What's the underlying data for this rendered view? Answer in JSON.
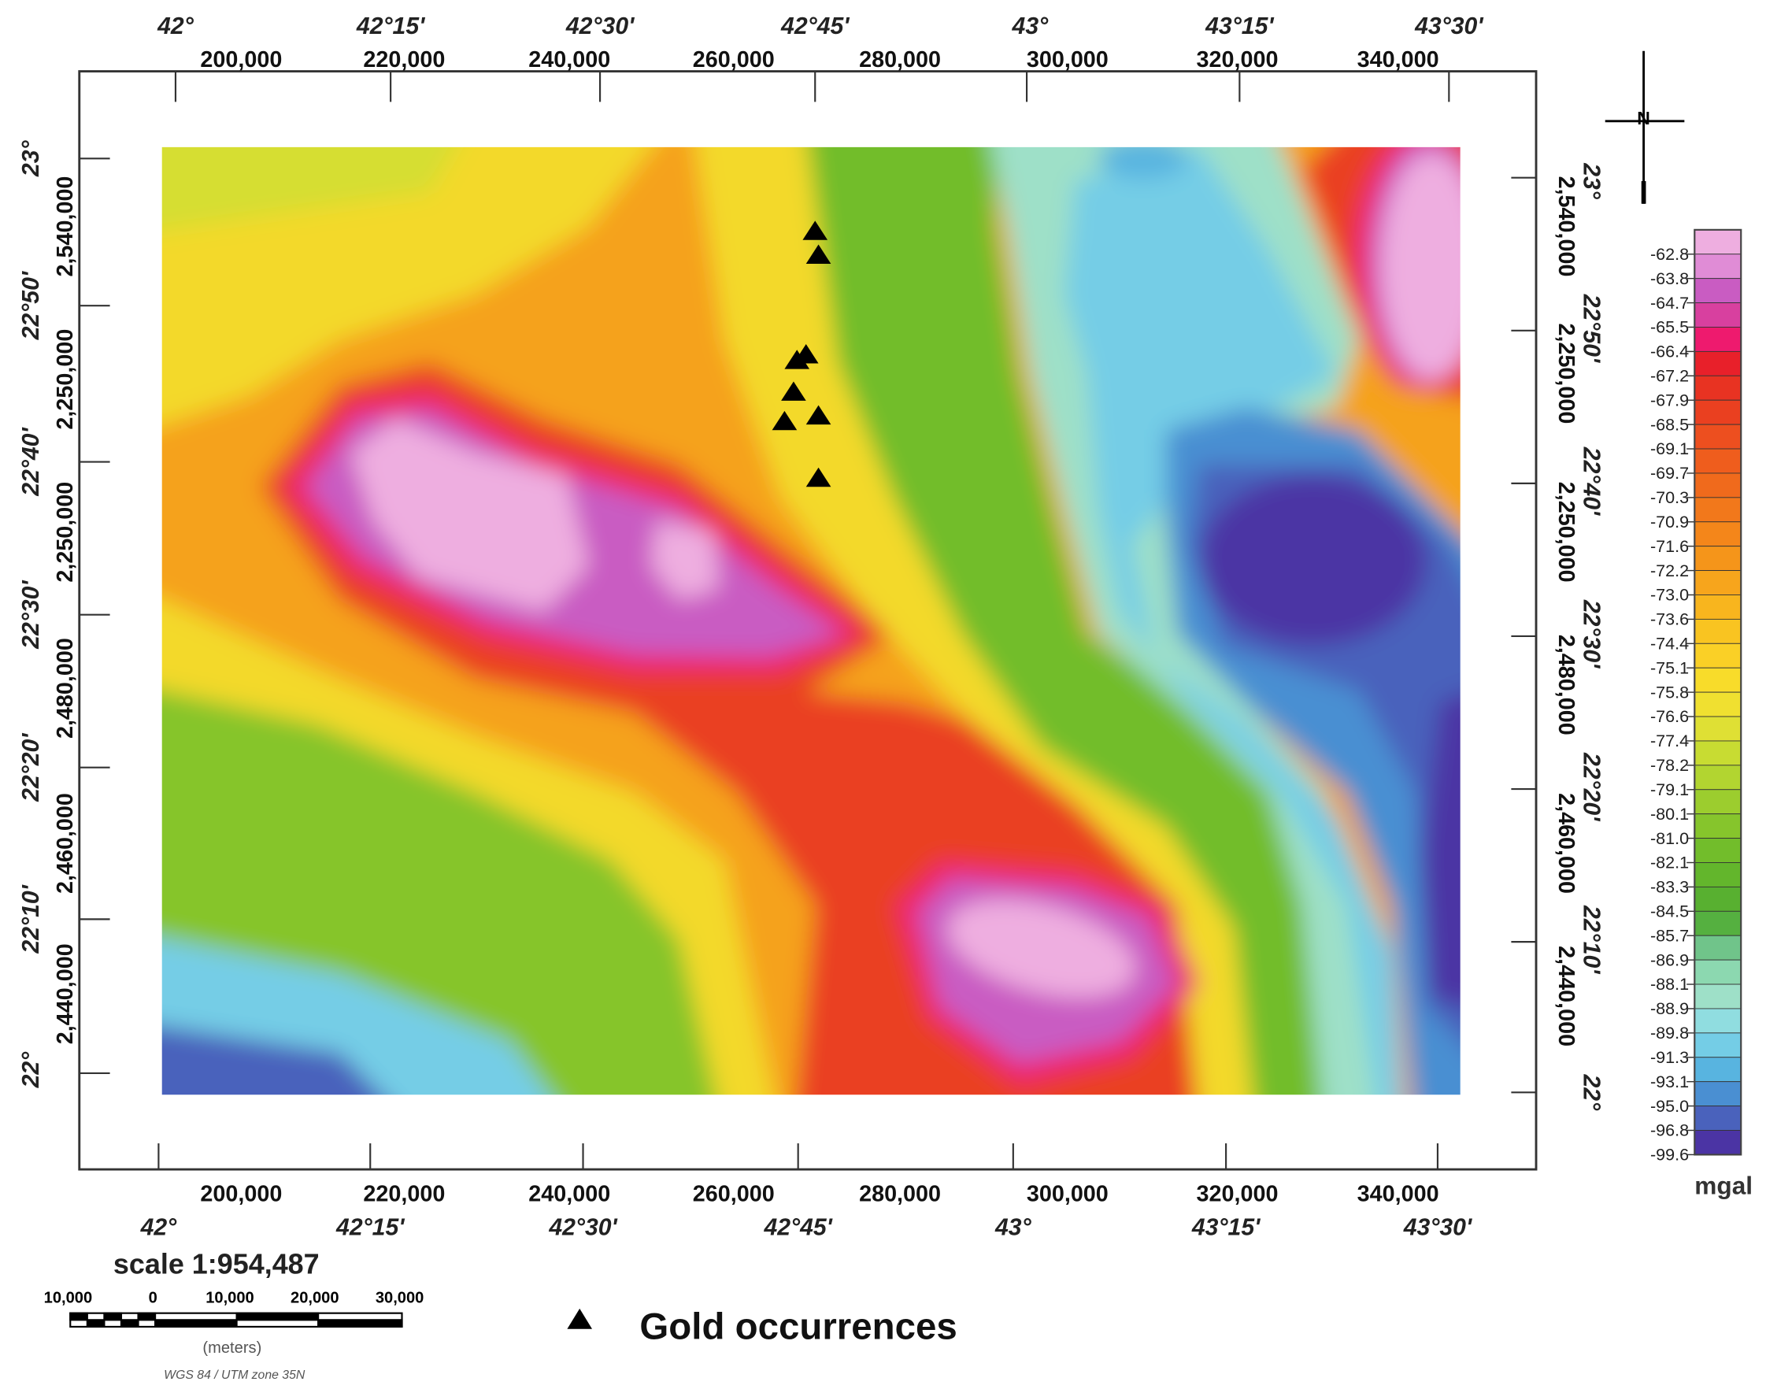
{
  "map": {
    "top_labels": {
      "degrees": [
        "42°",
        "42°15'",
        "42°30'",
        "42°45'",
        "43°",
        "43°15'",
        "43°30'"
      ],
      "utm": [
        "200,000",
        "220,000",
        "240,000",
        "260,000",
        "280,000",
        "300,000",
        "320,000",
        "340,000"
      ]
    },
    "bottom_labels": {
      "utm": [
        "200,000",
        "220,000",
        "240,000",
        "260,000",
        "280,000",
        "300,000",
        "320,000",
        "340,000"
      ],
      "degrees": [
        "42°",
        "42°15'",
        "42°30'",
        "42°45'",
        "43°",
        "43°15'",
        "43°30'"
      ]
    },
    "left_labels": {
      "degrees": [
        "23°",
        "22°50'",
        "22°40'",
        "22°30'",
        "22°20'",
        "22°10'",
        "22°"
      ],
      "utm": [
        "2,540,000",
        "2,250,000",
        "2,250,000",
        "2,480,000",
        "2,460,000",
        "2,440,000"
      ]
    },
    "right_labels": {
      "utm": [
        "2,540,000",
        "2,250,000",
        "2,250,000",
        "2,480,000",
        "2,460,000",
        "2,440,000"
      ],
      "degrees": [
        "23°",
        "22°50'",
        "22°40'",
        "22°30'",
        "22°20'",
        "22°10'",
        "22°"
      ]
    },
    "north_label": "N",
    "colorbar": {
      "unit": "mgal",
      "ticks": [
        -62.8,
        -63.8,
        -64.7,
        -65.5,
        -66.4,
        -67.2,
        -67.9,
        -68.5,
        -69.1,
        -69.7,
        -70.3,
        -70.9,
        -71.6,
        -72.2,
        {
          "value": -73,
          "label": "-73.0"
        },
        -73.6,
        -74.4,
        -75.1,
        -75.8,
        -76.6,
        -77.4,
        -78.2,
        -79.1,
        -80.1,
        {
          "value": -81,
          "label": "-81.0"
        },
        -82.1,
        -83.3,
        -84.5,
        -85.7,
        -86.9,
        -88.1,
        -88.9,
        -89.8,
        -91.3,
        -93.1,
        {
          "value": -95,
          "label": "-95.0"
        },
        -96.8,
        -99.6
      ],
      "colors": [
        "#eeaee0",
        "#e08cd6",
        "#c95cc2",
        "#d8409f",
        "#ee1a6e",
        "#e8202a",
        "#e83322",
        "#ea4020",
        "#ed4f1f",
        "#ef5d1d",
        "#f06a1c",
        "#f2781b",
        "#f4861a",
        "#f5951a",
        "#f7a51c",
        "#f8b51e",
        "#f9c421",
        "#fad026",
        "#f8dc2a",
        "#f0e030",
        "#dfe034",
        "#c8dc32",
        "#b2d530",
        "#9ccd2e",
        "#86c52c",
        "#72bd2b",
        "#63b62c",
        "#58b030",
        "#55b040",
        "#70c48a",
        "#8cd8b0",
        "#9ee0c8",
        "#90dde0",
        "#74cde6",
        "#58b4e0",
        "#4a8fd2",
        "#4a62bc",
        "#4b34a4"
      ]
    },
    "scale": {
      "title": "scale 1:954,487",
      "ticks": [
        "10,000",
        "0",
        "10,000",
        "20,000",
        "30,000"
      ],
      "unit": "(meters)",
      "projection": "WGS 84 / UTM zone 35N"
    },
    "legend": {
      "label": "Gold occurrences"
    }
  }
}
